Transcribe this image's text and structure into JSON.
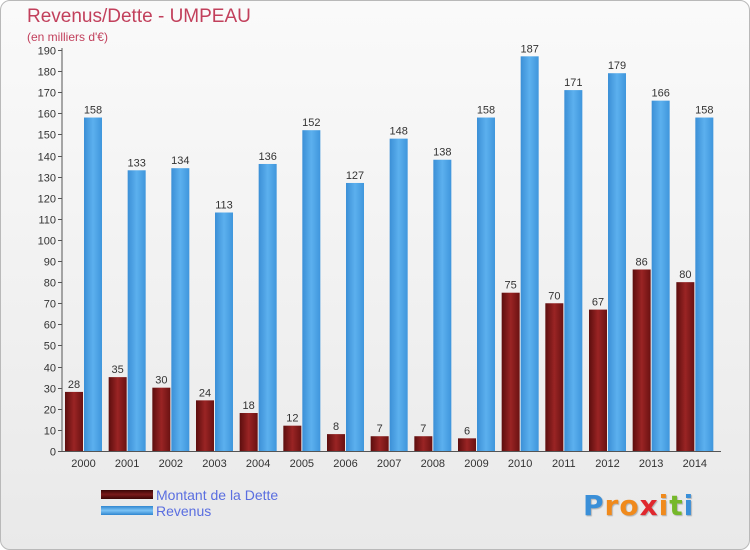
{
  "chart_data": {
    "type": "bar",
    "title": "Revenus/Dette - UMPEAU",
    "subtitle": "(en milliers d'€)",
    "categories": [
      "2000",
      "2001",
      "2002",
      "2003",
      "2004",
      "2005",
      "2006",
      "2007",
      "2008",
      "2009",
      "2010",
      "2011",
      "2012",
      "2013",
      "2014"
    ],
    "series": [
      {
        "name": "Montant de la Dette",
        "color": "#8b1c1c",
        "values": [
          28,
          35,
          30,
          24,
          18,
          12,
          8,
          7,
          7,
          6,
          75,
          70,
          67,
          86,
          80
        ]
      },
      {
        "name": "Revenus",
        "color": "#4ea3e6",
        "values": [
          158,
          133,
          134,
          113,
          136,
          152,
          127,
          148,
          138,
          158,
          187,
          171,
          179,
          166,
          158
        ]
      }
    ],
    "ylim": [
      0,
      190
    ],
    "ytick_step": 10,
    "grid": false,
    "legend_position": "bottom-left"
  },
  "logo": {
    "letters": [
      "P",
      "r",
      "o",
      "x",
      "i",
      "t",
      "i"
    ],
    "colors": [
      "#3a8fd8",
      "#f08a1c",
      "#f08a1c",
      "#e0282e",
      "#f08a1c",
      "#76b82a",
      "#3a8fd8"
    ]
  }
}
